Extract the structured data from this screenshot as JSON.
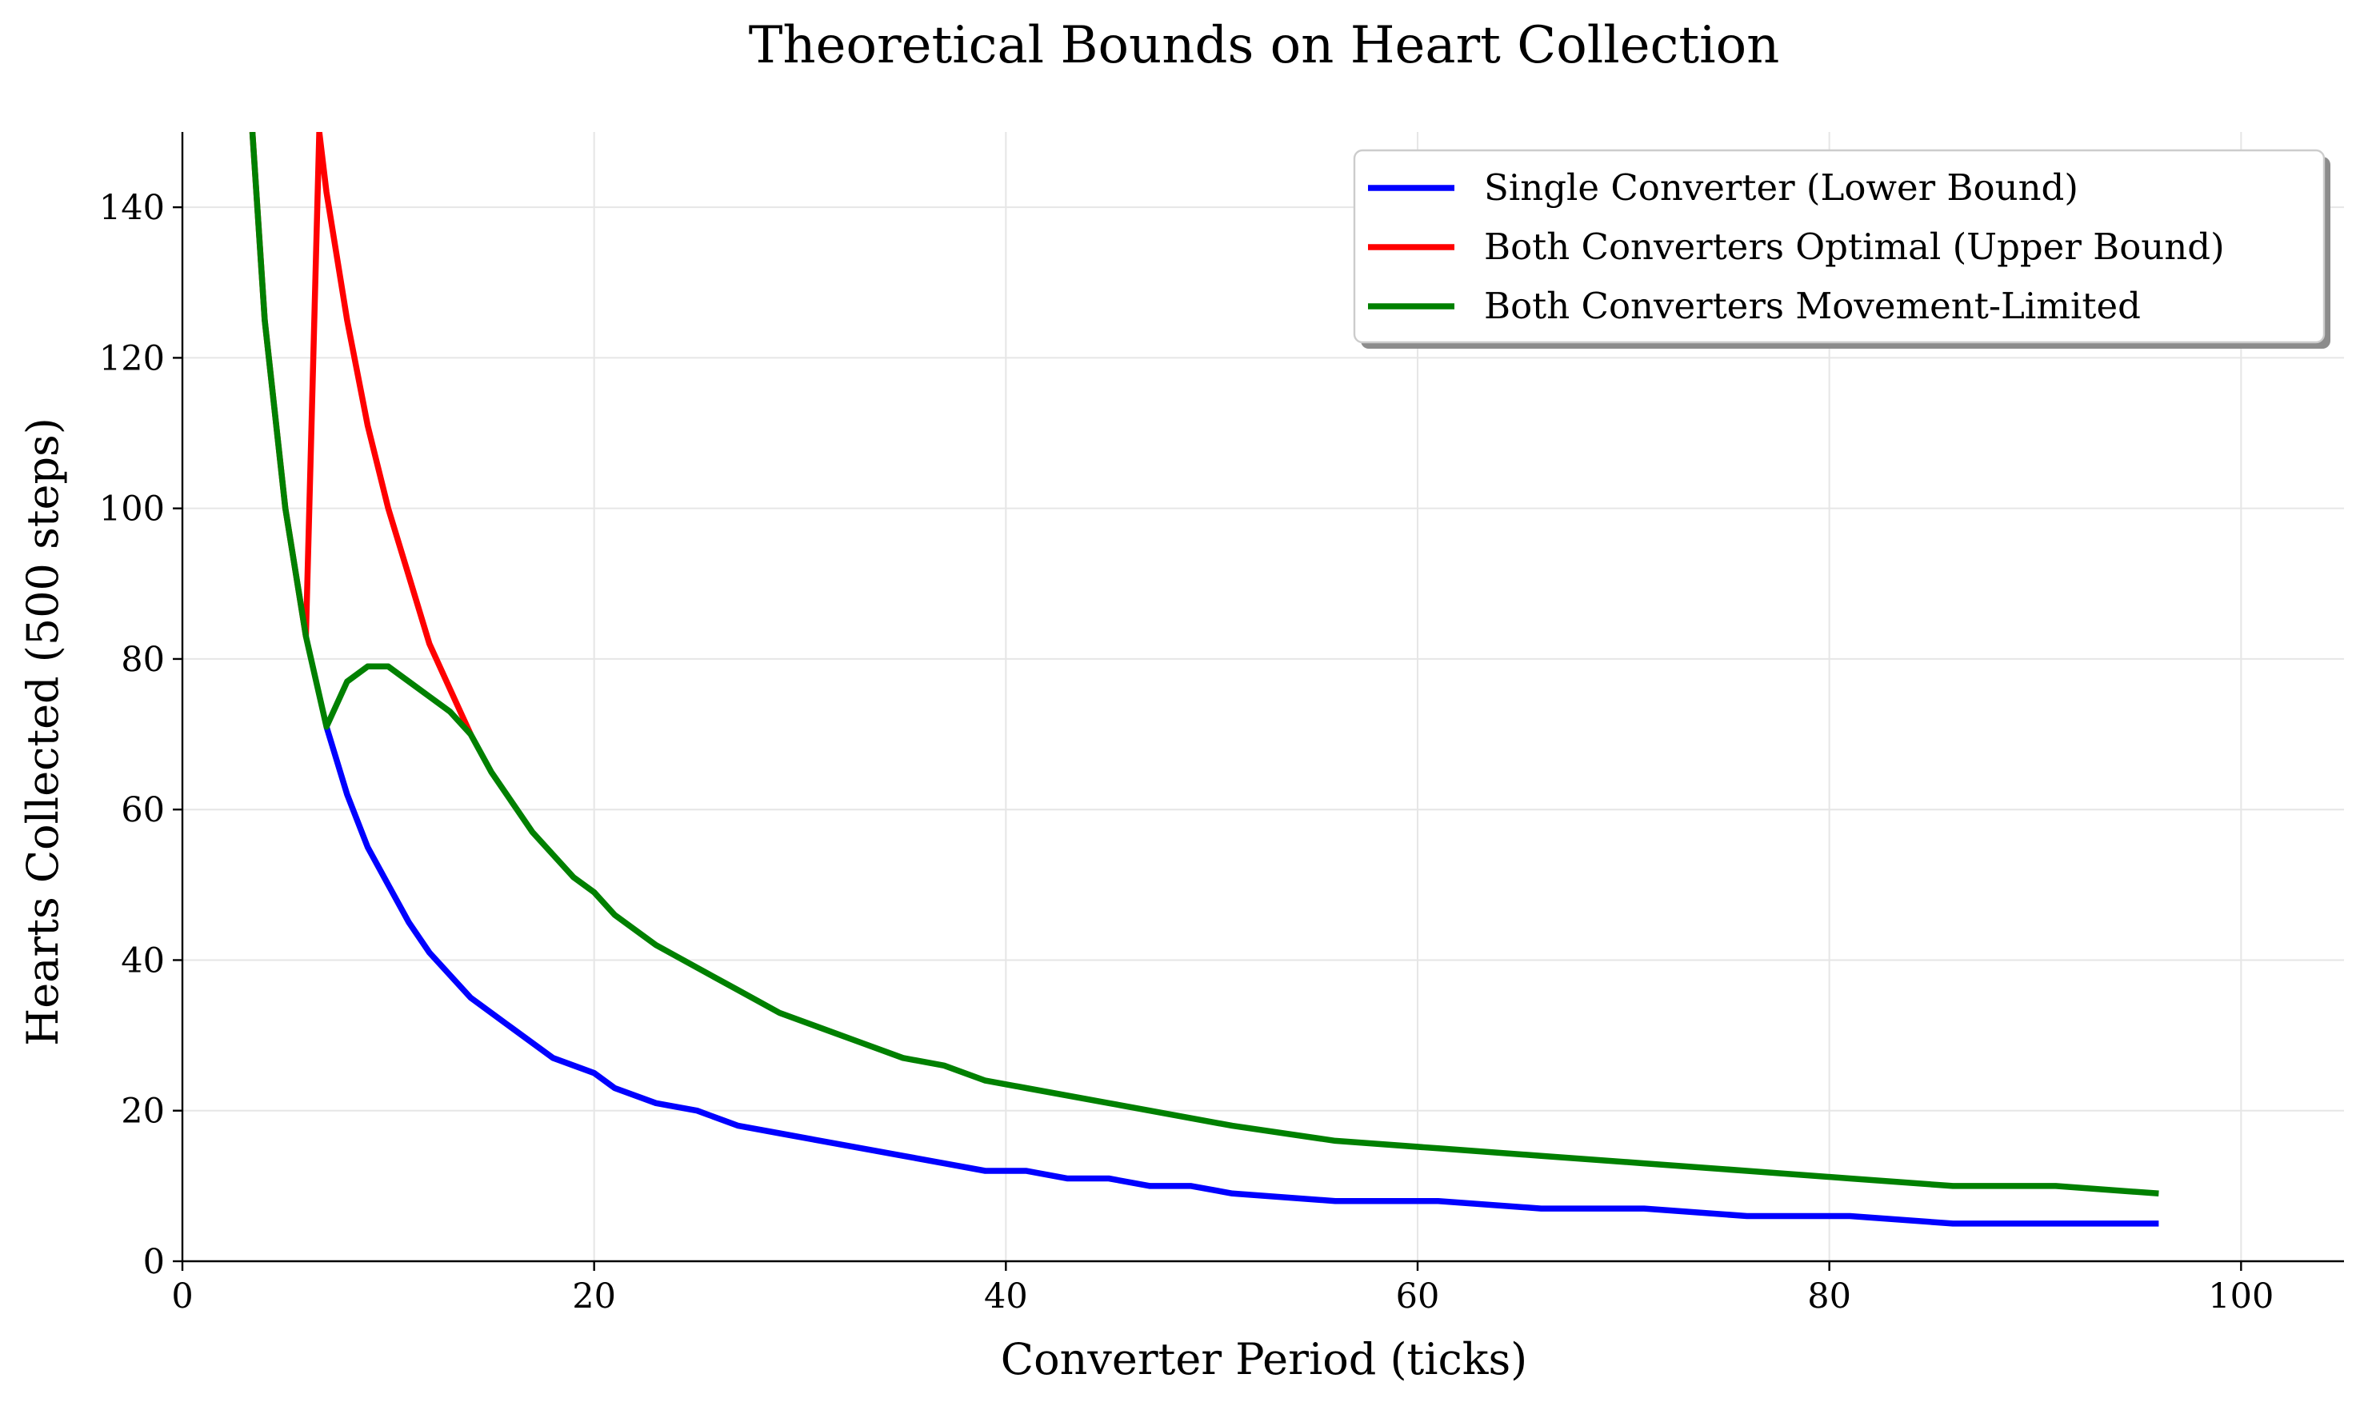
{
  "chart_data": {
    "type": "line",
    "title": "Theoretical Bounds on Heart Collection",
    "xlabel": "Converter Period (ticks)",
    "ylabel": "Hearts Collected (500 steps)",
    "xlim": [
      0,
      105
    ],
    "ylim": [
      0,
      150
    ],
    "xticks": [
      0,
      20,
      40,
      60,
      80,
      100
    ],
    "yticks": [
      0,
      20,
      40,
      60,
      80,
      100,
      120,
      140
    ],
    "grid": true,
    "legend_position": "top-right",
    "series": [
      {
        "name": "Single Converter (Lower Bound)",
        "color": "#0000ff",
        "points": [
          [
            7,
            71
          ],
          [
            8,
            62
          ],
          [
            9,
            55
          ],
          [
            10,
            50
          ],
          [
            11,
            45
          ],
          [
            12,
            41
          ],
          [
            14,
            35
          ],
          [
            16,
            31
          ],
          [
            18,
            27
          ],
          [
            20,
            25
          ],
          [
            21,
            23
          ],
          [
            23,
            21
          ],
          [
            25,
            20
          ],
          [
            27,
            18
          ],
          [
            29,
            17
          ],
          [
            31,
            16
          ],
          [
            33,
            15
          ],
          [
            35,
            14
          ],
          [
            37,
            13
          ],
          [
            39,
            12
          ],
          [
            41,
            12
          ],
          [
            43,
            11
          ],
          [
            45,
            11
          ],
          [
            47,
            10
          ],
          [
            49,
            10
          ],
          [
            51,
            9
          ],
          [
            56,
            8
          ],
          [
            61,
            8
          ],
          [
            66,
            7
          ],
          [
            71,
            7
          ],
          [
            76,
            6
          ],
          [
            81,
            6
          ],
          [
            86,
            5
          ],
          [
            91,
            5
          ],
          [
            96,
            5
          ]
        ]
      },
      {
        "name": "Both Converters Optimal (Upper Bound)",
        "color": "#ff0000",
        "points": [
          [
            3.4,
            150
          ],
          [
            4,
            125
          ],
          [
            5,
            100
          ],
          [
            6,
            83
          ],
          [
            6.65,
            150
          ],
          [
            7,
            142
          ],
          [
            8,
            125
          ],
          [
            9,
            111
          ],
          [
            10,
            100
          ],
          [
            11,
            91
          ],
          [
            12,
            82
          ],
          [
            13,
            76
          ],
          [
            14,
            70
          ]
        ]
      },
      {
        "name": "Both Converters Movement-Limited",
        "color": "#008000",
        "points": [
          [
            3.4,
            150
          ],
          [
            4,
            125
          ],
          [
            5,
            100
          ],
          [
            6,
            83
          ],
          [
            7,
            71
          ],
          [
            8,
            77
          ],
          [
            9,
            79
          ],
          [
            10,
            79
          ],
          [
            11,
            77
          ],
          [
            12,
            75
          ],
          [
            13,
            73
          ],
          [
            14,
            70
          ],
          [
            15,
            65
          ],
          [
            17,
            57
          ],
          [
            19,
            51
          ],
          [
            20,
            49
          ],
          [
            21,
            46
          ],
          [
            23,
            42
          ],
          [
            25,
            39
          ],
          [
            27,
            36
          ],
          [
            29,
            33
          ],
          [
            31,
            31
          ],
          [
            33,
            29
          ],
          [
            35,
            27
          ],
          [
            37,
            26
          ],
          [
            39,
            24
          ],
          [
            41,
            23
          ],
          [
            45,
            21
          ],
          [
            51,
            18
          ],
          [
            56,
            16
          ],
          [
            61,
            15
          ],
          [
            66,
            14
          ],
          [
            71,
            13
          ],
          [
            76,
            12
          ],
          [
            81,
            11
          ],
          [
            86,
            10
          ],
          [
            91,
            10
          ],
          [
            96,
            9
          ]
        ]
      }
    ]
  }
}
